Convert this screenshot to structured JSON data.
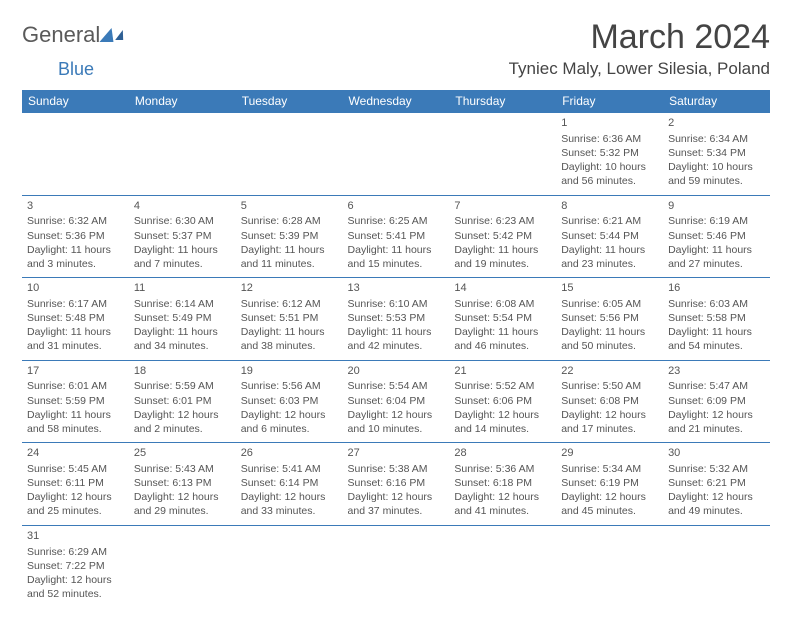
{
  "logo": {
    "part1": "General",
    "part2": "Blue"
  },
  "title": "March 2024",
  "location": "Tyniec Maly, Lower Silesia, Poland",
  "styling": {
    "header_bg": "#3b7ab8",
    "header_fg": "#ffffff",
    "cell_border": "#3b7ab8",
    "title_fontsize": 34,
    "location_fontsize": 17,
    "dayheader_fontsize": 12,
    "cell_fontsize": 10.5,
    "page_bg": "#ffffff",
    "text_color": "#555555"
  },
  "days_of_week": [
    "Sunday",
    "Monday",
    "Tuesday",
    "Wednesday",
    "Thursday",
    "Friday",
    "Saturday"
  ],
  "weeks": [
    [
      null,
      null,
      null,
      null,
      null,
      {
        "d": "1",
        "sr": "Sunrise: 6:36 AM",
        "ss": "Sunset: 5:32 PM",
        "dl1": "Daylight: 10 hours",
        "dl2": "and 56 minutes."
      },
      {
        "d": "2",
        "sr": "Sunrise: 6:34 AM",
        "ss": "Sunset: 5:34 PM",
        "dl1": "Daylight: 10 hours",
        "dl2": "and 59 minutes."
      }
    ],
    [
      {
        "d": "3",
        "sr": "Sunrise: 6:32 AM",
        "ss": "Sunset: 5:36 PM",
        "dl1": "Daylight: 11 hours",
        "dl2": "and 3 minutes."
      },
      {
        "d": "4",
        "sr": "Sunrise: 6:30 AM",
        "ss": "Sunset: 5:37 PM",
        "dl1": "Daylight: 11 hours",
        "dl2": "and 7 minutes."
      },
      {
        "d": "5",
        "sr": "Sunrise: 6:28 AM",
        "ss": "Sunset: 5:39 PM",
        "dl1": "Daylight: 11 hours",
        "dl2": "and 11 minutes."
      },
      {
        "d": "6",
        "sr": "Sunrise: 6:25 AM",
        "ss": "Sunset: 5:41 PM",
        "dl1": "Daylight: 11 hours",
        "dl2": "and 15 minutes."
      },
      {
        "d": "7",
        "sr": "Sunrise: 6:23 AM",
        "ss": "Sunset: 5:42 PM",
        "dl1": "Daylight: 11 hours",
        "dl2": "and 19 minutes."
      },
      {
        "d": "8",
        "sr": "Sunrise: 6:21 AM",
        "ss": "Sunset: 5:44 PM",
        "dl1": "Daylight: 11 hours",
        "dl2": "and 23 minutes."
      },
      {
        "d": "9",
        "sr": "Sunrise: 6:19 AM",
        "ss": "Sunset: 5:46 PM",
        "dl1": "Daylight: 11 hours",
        "dl2": "and 27 minutes."
      }
    ],
    [
      {
        "d": "10",
        "sr": "Sunrise: 6:17 AM",
        "ss": "Sunset: 5:48 PM",
        "dl1": "Daylight: 11 hours",
        "dl2": "and 31 minutes."
      },
      {
        "d": "11",
        "sr": "Sunrise: 6:14 AM",
        "ss": "Sunset: 5:49 PM",
        "dl1": "Daylight: 11 hours",
        "dl2": "and 34 minutes."
      },
      {
        "d": "12",
        "sr": "Sunrise: 6:12 AM",
        "ss": "Sunset: 5:51 PM",
        "dl1": "Daylight: 11 hours",
        "dl2": "and 38 minutes."
      },
      {
        "d": "13",
        "sr": "Sunrise: 6:10 AM",
        "ss": "Sunset: 5:53 PM",
        "dl1": "Daylight: 11 hours",
        "dl2": "and 42 minutes."
      },
      {
        "d": "14",
        "sr": "Sunrise: 6:08 AM",
        "ss": "Sunset: 5:54 PM",
        "dl1": "Daylight: 11 hours",
        "dl2": "and 46 minutes."
      },
      {
        "d": "15",
        "sr": "Sunrise: 6:05 AM",
        "ss": "Sunset: 5:56 PM",
        "dl1": "Daylight: 11 hours",
        "dl2": "and 50 minutes."
      },
      {
        "d": "16",
        "sr": "Sunrise: 6:03 AM",
        "ss": "Sunset: 5:58 PM",
        "dl1": "Daylight: 11 hours",
        "dl2": "and 54 minutes."
      }
    ],
    [
      {
        "d": "17",
        "sr": "Sunrise: 6:01 AM",
        "ss": "Sunset: 5:59 PM",
        "dl1": "Daylight: 11 hours",
        "dl2": "and 58 minutes."
      },
      {
        "d": "18",
        "sr": "Sunrise: 5:59 AM",
        "ss": "Sunset: 6:01 PM",
        "dl1": "Daylight: 12 hours",
        "dl2": "and 2 minutes."
      },
      {
        "d": "19",
        "sr": "Sunrise: 5:56 AM",
        "ss": "Sunset: 6:03 PM",
        "dl1": "Daylight: 12 hours",
        "dl2": "and 6 minutes."
      },
      {
        "d": "20",
        "sr": "Sunrise: 5:54 AM",
        "ss": "Sunset: 6:04 PM",
        "dl1": "Daylight: 12 hours",
        "dl2": "and 10 minutes."
      },
      {
        "d": "21",
        "sr": "Sunrise: 5:52 AM",
        "ss": "Sunset: 6:06 PM",
        "dl1": "Daylight: 12 hours",
        "dl2": "and 14 minutes."
      },
      {
        "d": "22",
        "sr": "Sunrise: 5:50 AM",
        "ss": "Sunset: 6:08 PM",
        "dl1": "Daylight: 12 hours",
        "dl2": "and 17 minutes."
      },
      {
        "d": "23",
        "sr": "Sunrise: 5:47 AM",
        "ss": "Sunset: 6:09 PM",
        "dl1": "Daylight: 12 hours",
        "dl2": "and 21 minutes."
      }
    ],
    [
      {
        "d": "24",
        "sr": "Sunrise: 5:45 AM",
        "ss": "Sunset: 6:11 PM",
        "dl1": "Daylight: 12 hours",
        "dl2": "and 25 minutes."
      },
      {
        "d": "25",
        "sr": "Sunrise: 5:43 AM",
        "ss": "Sunset: 6:13 PM",
        "dl1": "Daylight: 12 hours",
        "dl2": "and 29 minutes."
      },
      {
        "d": "26",
        "sr": "Sunrise: 5:41 AM",
        "ss": "Sunset: 6:14 PM",
        "dl1": "Daylight: 12 hours",
        "dl2": "and 33 minutes."
      },
      {
        "d": "27",
        "sr": "Sunrise: 5:38 AM",
        "ss": "Sunset: 6:16 PM",
        "dl1": "Daylight: 12 hours",
        "dl2": "and 37 minutes."
      },
      {
        "d": "28",
        "sr": "Sunrise: 5:36 AM",
        "ss": "Sunset: 6:18 PM",
        "dl1": "Daylight: 12 hours",
        "dl2": "and 41 minutes."
      },
      {
        "d": "29",
        "sr": "Sunrise: 5:34 AM",
        "ss": "Sunset: 6:19 PM",
        "dl1": "Daylight: 12 hours",
        "dl2": "and 45 minutes."
      },
      {
        "d": "30",
        "sr": "Sunrise: 5:32 AM",
        "ss": "Sunset: 6:21 PM",
        "dl1": "Daylight: 12 hours",
        "dl2": "and 49 minutes."
      }
    ],
    [
      {
        "d": "31",
        "sr": "Sunrise: 6:29 AM",
        "ss": "Sunset: 7:22 PM",
        "dl1": "Daylight: 12 hours",
        "dl2": "and 52 minutes."
      },
      null,
      null,
      null,
      null,
      null,
      null
    ]
  ]
}
